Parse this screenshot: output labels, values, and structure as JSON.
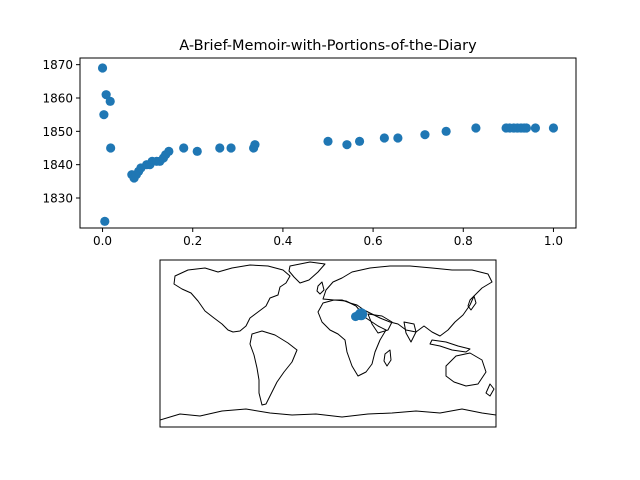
{
  "chart_data": [
    {
      "type": "scatter",
      "title": "A-Brief-Memoir-with-Portions-of-the-Diary",
      "xlabel": "",
      "ylabel": "",
      "xlim": [
        -0.05,
        1.05
      ],
      "ylim": [
        1821,
        1872
      ],
      "x_ticks": [
        0.0,
        0.2,
        0.4,
        0.6,
        0.8,
        1.0
      ],
      "x_tick_labels": [
        "0.0",
        "0.2",
        "0.4",
        "0.6",
        "0.8",
        "1.0"
      ],
      "y_ticks": [
        1830,
        1840,
        1850,
        1860,
        1870
      ],
      "y_tick_labels": [
        "1830",
        "1840",
        "1850",
        "1860",
        "1870"
      ],
      "grid": false,
      "marker_color": "#1f77b4",
      "points": [
        {
          "x": 0.0,
          "y": 1869
        },
        {
          "x": 0.003,
          "y": 1855
        },
        {
          "x": 0.008,
          "y": 1861
        },
        {
          "x": 0.017,
          "y": 1859
        },
        {
          "x": 0.005,
          "y": 1823
        },
        {
          "x": 0.018,
          "y": 1845
        },
        {
          "x": 0.065,
          "y": 1837
        },
        {
          "x": 0.07,
          "y": 1836
        },
        {
          "x": 0.075,
          "y": 1837
        },
        {
          "x": 0.08,
          "y": 1838
        },
        {
          "x": 0.085,
          "y": 1839
        },
        {
          "x": 0.098,
          "y": 1840
        },
        {
          "x": 0.105,
          "y": 1840
        },
        {
          "x": 0.11,
          "y": 1841
        },
        {
          "x": 0.12,
          "y": 1841
        },
        {
          "x": 0.127,
          "y": 1841
        },
        {
          "x": 0.135,
          "y": 1842
        },
        {
          "x": 0.14,
          "y": 1843
        },
        {
          "x": 0.147,
          "y": 1844
        },
        {
          "x": 0.18,
          "y": 1845
        },
        {
          "x": 0.21,
          "y": 1844
        },
        {
          "x": 0.26,
          "y": 1845
        },
        {
          "x": 0.285,
          "y": 1845
        },
        {
          "x": 0.335,
          "y": 1845
        },
        {
          "x": 0.338,
          "y": 1846
        },
        {
          "x": 0.5,
          "y": 1847
        },
        {
          "x": 0.542,
          "y": 1846
        },
        {
          "x": 0.57,
          "y": 1847
        },
        {
          "x": 0.625,
          "y": 1848
        },
        {
          "x": 0.655,
          "y": 1848
        },
        {
          "x": 0.715,
          "y": 1849
        },
        {
          "x": 0.762,
          "y": 1850
        },
        {
          "x": 0.828,
          "y": 1851
        },
        {
          "x": 0.895,
          "y": 1851
        },
        {
          "x": 0.903,
          "y": 1851
        },
        {
          "x": 0.912,
          "y": 1851
        },
        {
          "x": 0.92,
          "y": 1851
        },
        {
          "x": 0.928,
          "y": 1851
        },
        {
          "x": 0.935,
          "y": 1851
        },
        {
          "x": 0.94,
          "y": 1851
        },
        {
          "x": 0.96,
          "y": 1851
        },
        {
          "x": 1.0,
          "y": 1851
        }
      ]
    },
    {
      "type": "map",
      "projection": "plate-carree",
      "lon_range": [
        -180,
        180
      ],
      "lat_range": [
        -90,
        90
      ],
      "coastline_color": "#000000",
      "marker_color": "#1f77b4",
      "points": [
        {
          "lon": 35.5,
          "lat": 31.5,
          "size": "large"
        },
        {
          "lon": 31.5,
          "lat": 30.0,
          "size": "small"
        },
        {
          "lon": 29.5,
          "lat": 29.0,
          "size": "small"
        },
        {
          "lon": 34.5,
          "lat": 32.5,
          "size": "small"
        }
      ]
    }
  ]
}
